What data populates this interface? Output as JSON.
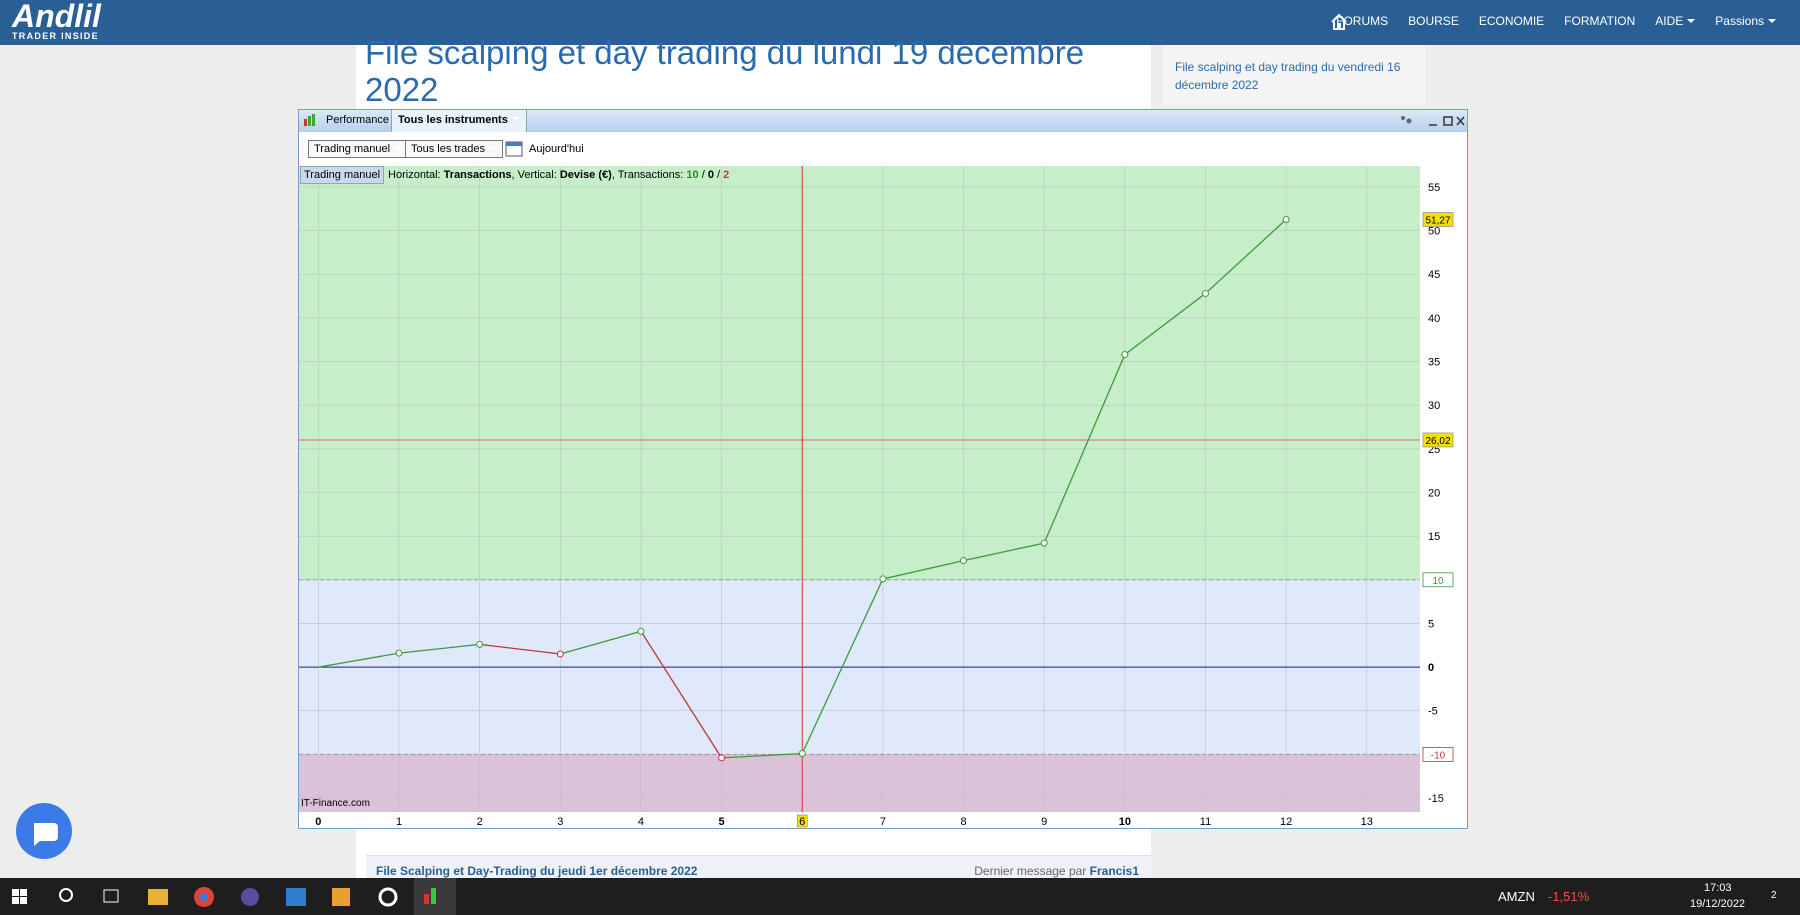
{
  "nav": {
    "logo": "Andlil",
    "tagline": "TRADER INSIDE",
    "items": [
      "FORUMS",
      "BOURSE",
      "ECONOMIE",
      "FORMATION",
      "AIDE",
      "Passions"
    ]
  },
  "page": {
    "title": "File scalping et day trading du lundi 19 décembre 2022",
    "sidebar_link": "File scalping et day trading du vendredi 16 décembre 2022",
    "topic": "File Scalping et Day-Trading du jeudi 1er décembre 2022",
    "last_message": "Dernier message par",
    "author": "Francis1"
  },
  "window": {
    "tab": "Performance",
    "instruments": "Tous les instruments",
    "mode": "Trading manuel",
    "trades": "Tous les trades",
    "period": "Aujourd'hui",
    "legend_button": "Trading manuel",
    "info": [
      "Horizontal: ",
      "Transactions",
      ", Vertical: ",
      "Devise (€)",
      ", Transactions: ",
      "10",
      " / ",
      "0",
      " / ",
      "2"
    ],
    "watermark": "IT-Finance.com"
  },
  "chart_data": {
    "type": "line",
    "x": [
      0,
      1,
      2,
      3,
      4,
      5,
      6,
      7,
      8,
      9,
      10,
      11,
      12
    ],
    "values": [
      0,
      1.6,
      2.6,
      1.5,
      4.1,
      -10.4,
      -9.9,
      10.1,
      12.2,
      14.2,
      35.8,
      42.8,
      51.27
    ],
    "value_labels": [
      null,
      null,
      null,
      null,
      null,
      null,
      null,
      null,
      null,
      null,
      null,
      null,
      "51,27"
    ],
    "up_color": "#3c9a3c",
    "down_color": "#c0343c",
    "xlim": [
      -0.24,
      13.66
    ],
    "xticks": [
      0,
      1,
      2,
      3,
      4,
      5,
      6,
      7,
      8,
      9,
      10,
      11,
      12,
      13
    ],
    "ylim": [
      -16.6,
      57.4
    ],
    "yticks": [
      -15,
      -10,
      -5,
      0,
      5,
      10,
      15,
      20,
      25,
      30,
      35,
      40,
      45,
      50,
      55
    ],
    "grid": true,
    "cursor_x": 6,
    "average": {
      "value": 26.02,
      "label": "26,02"
    },
    "upper_threshold": 10,
    "lower_threshold": -10,
    "zone_colors": [
      "#c6efc9",
      "#e0e9fb",
      "#dcc2d8"
    ]
  },
  "taskbar": {
    "ticker": "AMZN",
    "change": "-1,51%",
    "time": "17:03",
    "date": "19/12/2022",
    "notifications": "2"
  }
}
